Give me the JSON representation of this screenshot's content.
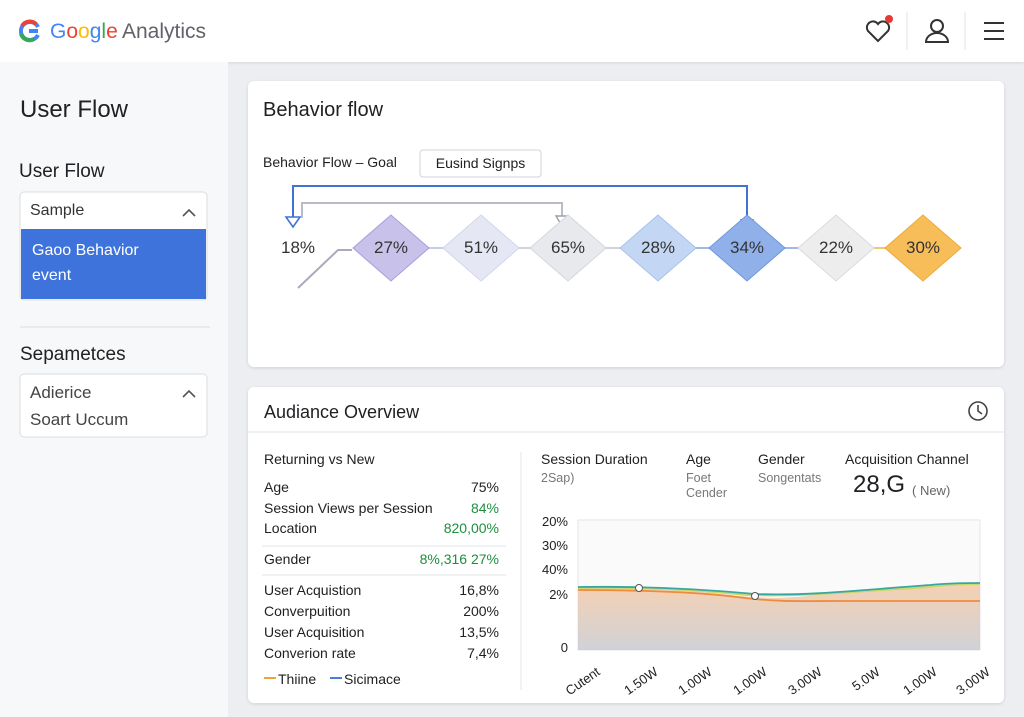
{
  "header": {
    "logo_google": "Google",
    "logo_product": "Analytics"
  },
  "sidebar": {
    "title": "User Flow",
    "section1": {
      "label": "User Flow",
      "dropdown": "Sample",
      "selected": "Gaoo Behavior event"
    },
    "section2": {
      "label": "Sepametces",
      "items": [
        "Adierice",
        "Soart Uccum"
      ]
    }
  },
  "behavior": {
    "title": "Behavior flow",
    "subtitle": "Behavior Flow – Goal",
    "button": "Eusind Signps",
    "steps": [
      "18%",
      "27%",
      "51%",
      "65%",
      "28%",
      "34%",
      "22%",
      "30%"
    ]
  },
  "overview": {
    "title": "Audiance Overview",
    "left": {
      "heading": "Returning vs New",
      "rows": [
        [
          "Age",
          "75%"
        ],
        [
          "Session Views per Session",
          "84%"
        ],
        [
          "Location",
          "820,00%"
        ],
        [
          "Gender",
          "8%,316 27%"
        ],
        [
          "User Acquistion",
          "16,8%"
        ],
        [
          "Converpuition",
          "200%"
        ],
        [
          "User Acquisition",
          "13,5%"
        ],
        [
          "Converion rate",
          "7,4%"
        ]
      ],
      "legend": [
        "Thiine",
        "Sicimace"
      ]
    },
    "right": {
      "columns": [
        {
          "title": "Session Duration",
          "sub": [
            "2Sap)"
          ]
        },
        {
          "title": "Age",
          "sub": [
            "Foet",
            "Cender"
          ]
        },
        {
          "title": "Gender",
          "sub": [
            "Songentats"
          ]
        },
        {
          "title": "Acquisition Channel",
          "value": "28,G",
          "note": "( New)"
        }
      ],
      "chart": {
        "yticks": [
          "20%",
          "30%",
          "40%",
          "2%",
          "0"
        ],
        "xticks": [
          "Cutent",
          "1.50W",
          "1.00W",
          "1.00W",
          "3.00W",
          "5.0W",
          "1.00W",
          "3.00W"
        ]
      }
    }
  }
}
